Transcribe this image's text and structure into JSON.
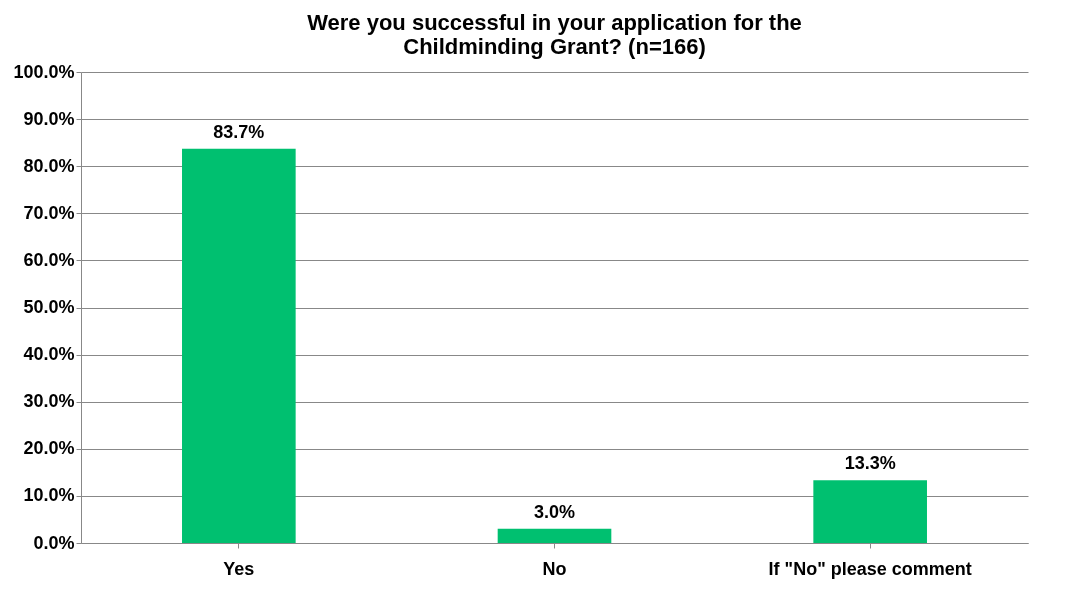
{
  "chart_data": {
    "type": "bar",
    "title": [
      "Were you successful in your application for the",
      "Childminding Grant? (n=166)"
    ],
    "categories": [
      "Yes",
      "No",
      "If \"No\" please comment"
    ],
    "values": [
      83.7,
      3.0,
      13.3
    ],
    "value_labels": [
      "83.7%",
      "3.0%",
      "13.3%"
    ],
    "color": "#00c070",
    "ylim": [
      0,
      100
    ],
    "yticks": [
      {
        "value": 0,
        "label": "0.0%"
      },
      {
        "value": 10,
        "label": "10.0%"
      },
      {
        "value": 20,
        "label": "20.0%"
      },
      {
        "value": 30,
        "label": "30.0%"
      },
      {
        "value": 40,
        "label": "40.0%"
      },
      {
        "value": 50,
        "label": "50.0%"
      },
      {
        "value": 60,
        "label": "60.0%"
      },
      {
        "value": 70,
        "label": "70.0%"
      },
      {
        "value": 80,
        "label": "80.0%"
      },
      {
        "value": 90,
        "label": "90.0%"
      },
      {
        "value": 100,
        "label": "100.0%"
      }
    ],
    "grid": "y"
  }
}
